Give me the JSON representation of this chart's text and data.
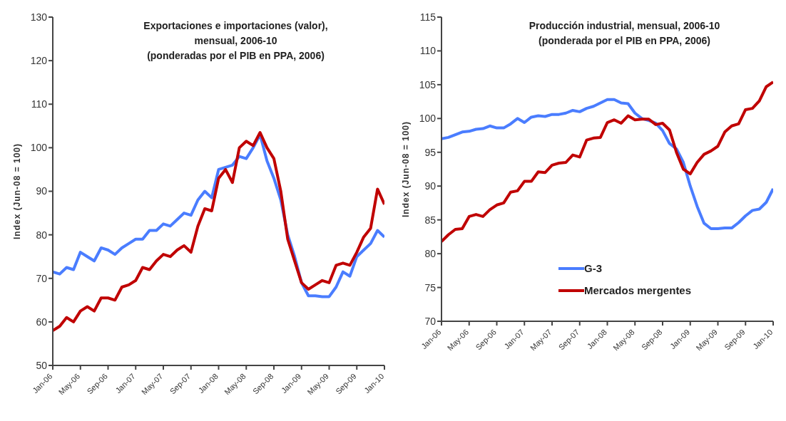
{
  "chart_data": [
    {
      "type": "line",
      "title": "Exportaciones e importaciones (valor),\nmensual, 2006-10\n(ponderadas por el PIB en PPA, 2006)",
      "ylabel": "Index (Jun-08 = 100)",
      "categories": [
        "Jan-06",
        null,
        null,
        null,
        "May-06",
        null,
        null,
        null,
        "Sep-06",
        null,
        null,
        null,
        "Jan-07",
        null,
        null,
        null,
        "May-07",
        null,
        null,
        null,
        "Sep-07",
        null,
        null,
        null,
        "Jan-08",
        null,
        null,
        null,
        "May-08",
        null,
        null,
        null,
        "Sep-08",
        null,
        null,
        null,
        "Jan-09",
        null,
        null,
        null,
        "May-09",
        null,
        null,
        null,
        "Sep-09",
        null,
        null,
        null,
        "Jan-10"
      ],
      "series": [
        {
          "color": "#4a7dff",
          "values": [
            71.5,
            71,
            72.5,
            72,
            76,
            75,
            74,
            77,
            76.5,
            75.5,
            77,
            78,
            79,
            79,
            81,
            81,
            82.5,
            82,
            83.5,
            85,
            84.5,
            88,
            90,
            88.5,
            95,
            95.5,
            96,
            98,
            97.5,
            100,
            103,
            97,
            93,
            88,
            80,
            75,
            69,
            66,
            66,
            65.8,
            65.8,
            68,
            71.5,
            70.5,
            75,
            76.5,
            78,
            81,
            79.5
          ]
        },
        {
          "color": "#c00000",
          "values": [
            58,
            59,
            61,
            60,
            62.5,
            63.5,
            62.5,
            65.5,
            65.5,
            65,
            68,
            68.5,
            69.5,
            72.5,
            72,
            74,
            75.5,
            75,
            76.5,
            77.5,
            76,
            82,
            86,
            85.5,
            93,
            95,
            92,
            100,
            101.5,
            100.5,
            103.5,
            100,
            97.5,
            90,
            79,
            74,
            69,
            67.5,
            68.5,
            69.5,
            69,
            73,
            73.5,
            73,
            76,
            79.5,
            81.5,
            90.5,
            87
          ]
        }
      ],
      "ylim": [
        50,
        130
      ],
      "yticks": [
        50,
        60,
        70,
        80,
        90,
        100,
        110,
        120,
        130
      ],
      "grid": false,
      "legend": false,
      "marker": "none",
      "line_style": "solid"
    },
    {
      "type": "line",
      "title": "Producción industrial, mensual, 2006-10\n(ponderada por el PIB en PPA, 2006)",
      "ylabel": "Index (Jun-08 = 100)",
      "categories": [
        "Jan-06",
        null,
        null,
        null,
        "May-06",
        null,
        null,
        null,
        "Sep-06",
        null,
        null,
        null,
        "Jan-07",
        null,
        null,
        null,
        "May-07",
        null,
        null,
        null,
        "Sep-07",
        null,
        null,
        null,
        "Jan-08",
        null,
        null,
        null,
        "May-08",
        null,
        null,
        null,
        "Sep-08",
        null,
        null,
        null,
        "Jan-09",
        null,
        null,
        null,
        "May-09",
        null,
        null,
        null,
        "Sep-09",
        null,
        null,
        null,
        "Jan-10"
      ],
      "series": [
        {
          "name": "G-3",
          "color": "#4a7dff",
          "values": [
            97,
            97.2,
            97.6,
            98,
            98.1,
            98.4,
            98.5,
            98.9,
            98.6,
            98.6,
            99.2,
            100,
            99.4,
            100.2,
            100.4,
            100.3,
            100.6,
            100.6,
            100.8,
            101.2,
            101,
            101.5,
            101.8,
            102.3,
            102.8,
            102.8,
            102.3,
            102.2,
            100.8,
            100,
            99.7,
            99.3,
            98.2,
            96.3,
            95.5,
            93.5,
            90,
            87,
            84.5,
            83.7,
            83.7,
            83.8,
            83.8,
            84.6,
            85.6,
            86.4,
            86.6,
            87.6,
            89.6
          ]
        },
        {
          "name": "Mercados mergentes",
          "color": "#c00000",
          "values": [
            81.8,
            82.8,
            83.6,
            83.7,
            85.5,
            85.8,
            85.5,
            86.5,
            87.2,
            87.5,
            89.1,
            89.3,
            90.7,
            90.7,
            92.1,
            92,
            93.1,
            93.4,
            93.5,
            94.6,
            94.3,
            96.8,
            97.1,
            97.2,
            99.4,
            99.8,
            99.3,
            100.4,
            99.8,
            99.9,
            99.9,
            99.1,
            99.3,
            98.3,
            95,
            92.5,
            91.8,
            93.5,
            94.7,
            95.2,
            95.9,
            98,
            98.9,
            99.2,
            101.3,
            101.5,
            102.6,
            104.7,
            105.4
          ]
        }
      ],
      "ylim": [
        70,
        115
      ],
      "yticks": [
        70,
        75,
        80,
        85,
        90,
        95,
        100,
        105,
        110,
        115
      ],
      "grid": false,
      "legend": "bottom",
      "marker": "none",
      "line_style": "solid"
    }
  ]
}
